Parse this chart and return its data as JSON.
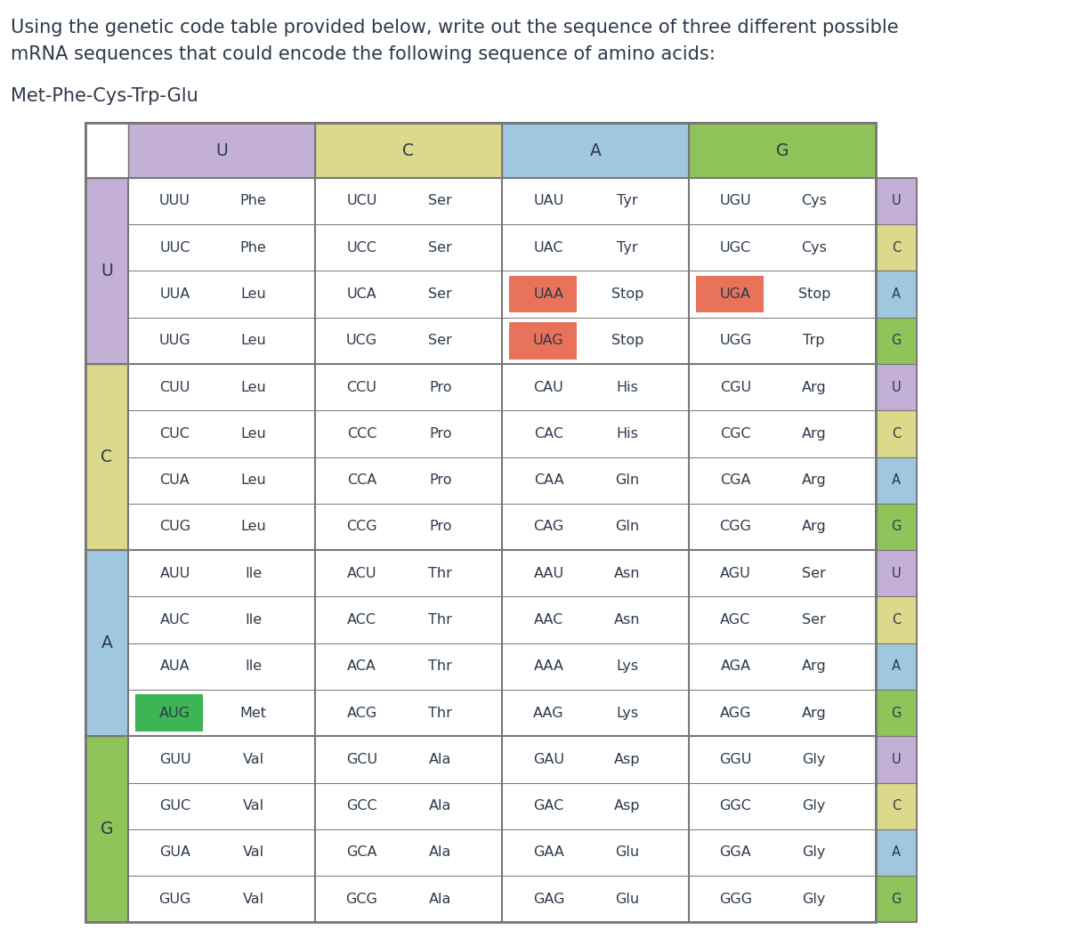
{
  "title_line1": "Using the genetic code table provided below, write out the sequence of three different possible",
  "title_line2": "mRNA sequences that could encode the following sequence of amino acids:",
  "subtitle": "Met-Phe-Cys-Trp-Glu",
  "title_fontsize": 15.0,
  "subtitle_fontsize": 15.0,
  "col_headers": [
    "U",
    "C",
    "A",
    "G"
  ],
  "col_header_colors": [
    "#c4afd6",
    "#dcd98a",
    "#9fc8e0",
    "#8fc45a"
  ],
  "row_headers": [
    "U",
    "C",
    "A",
    "G"
  ],
  "row_header_colors": [
    "#c4afd6",
    "#dcd98a",
    "#9fc8e0",
    "#8fc45a"
  ],
  "right_col_labels": [
    "U",
    "C",
    "A",
    "G"
  ],
  "right_col_colors": [
    "#c4afd6",
    "#dcd98a",
    "#9fc8e0",
    "#8fc45a"
  ],
  "table_data": [
    {
      "row": "U",
      "cells": [
        [
          [
            "UUU",
            "Phe"
          ],
          [
            "UUC",
            "Phe"
          ],
          [
            "UUA",
            "Leu"
          ],
          [
            "UUG",
            "Leu"
          ]
        ],
        [
          [
            "UCU",
            "Ser"
          ],
          [
            "UCC",
            "Ser"
          ],
          [
            "UCA",
            "Ser"
          ],
          [
            "UCG",
            "Ser"
          ]
        ],
        [
          [
            "UAU",
            "Tyr"
          ],
          [
            "UAC",
            "Tyr"
          ],
          [
            "UAA",
            "Stop"
          ],
          [
            "UAG",
            "Stop"
          ]
        ],
        [
          [
            "UGU",
            "Cys"
          ],
          [
            "UGC",
            "Cys"
          ],
          [
            "UGA",
            "Stop"
          ],
          [
            "UGG",
            "Trp"
          ]
        ]
      ]
    },
    {
      "row": "C",
      "cells": [
        [
          [
            "CUU",
            "Leu"
          ],
          [
            "CUC",
            "Leu"
          ],
          [
            "CUA",
            "Leu"
          ],
          [
            "CUG",
            "Leu"
          ]
        ],
        [
          [
            "CCU",
            "Pro"
          ],
          [
            "CCC",
            "Pro"
          ],
          [
            "CCA",
            "Pro"
          ],
          [
            "CCG",
            "Pro"
          ]
        ],
        [
          [
            "CAU",
            "His"
          ],
          [
            "CAC",
            "His"
          ],
          [
            "CAA",
            "Gln"
          ],
          [
            "CAG",
            "Gln"
          ]
        ],
        [
          [
            "CGU",
            "Arg"
          ],
          [
            "CGC",
            "Arg"
          ],
          [
            "CGA",
            "Arg"
          ],
          [
            "CGG",
            "Arg"
          ]
        ]
      ]
    },
    {
      "row": "A",
      "cells": [
        [
          [
            "AUU",
            "Ile"
          ],
          [
            "AUC",
            "Ile"
          ],
          [
            "AUA",
            "Ile"
          ],
          [
            "AUG",
            "Met"
          ]
        ],
        [
          [
            "ACU",
            "Thr"
          ],
          [
            "ACC",
            "Thr"
          ],
          [
            "ACA",
            "Thr"
          ],
          [
            "ACG",
            "Thr"
          ]
        ],
        [
          [
            "AAU",
            "Asn"
          ],
          [
            "AAC",
            "Asn"
          ],
          [
            "AAA",
            "Lys"
          ],
          [
            "AAG",
            "Lys"
          ]
        ],
        [
          [
            "AGU",
            "Ser"
          ],
          [
            "AGC",
            "Ser"
          ],
          [
            "AGA",
            "Arg"
          ],
          [
            "AGG",
            "Arg"
          ]
        ]
      ]
    },
    {
      "row": "G",
      "cells": [
        [
          [
            "GUU",
            "Val"
          ],
          [
            "GUC",
            "Val"
          ],
          [
            "GUA",
            "Val"
          ],
          [
            "GUG",
            "Val"
          ]
        ],
        [
          [
            "GCU",
            "Ala"
          ],
          [
            "GCC",
            "Ala"
          ],
          [
            "GCA",
            "Ala"
          ],
          [
            "GCG",
            "Ala"
          ]
        ],
        [
          [
            "GAU",
            "Asp"
          ],
          [
            "GAC",
            "Asp"
          ],
          [
            "GAA",
            "Glu"
          ],
          [
            "GAG",
            "Glu"
          ]
        ],
        [
          [
            "GGU",
            "Gly"
          ],
          [
            "GGC",
            "Gly"
          ],
          [
            "GGA",
            "Gly"
          ],
          [
            "GGG",
            "Gly"
          ]
        ]
      ]
    }
  ],
  "highlights": {
    "UAA": "#e8735a",
    "UAG": "#e8735a",
    "UGA": "#e8735a",
    "AUG": "#3db554"
  },
  "bg_color": "#ffffff",
  "text_color": "#2d3a4a",
  "grid_color": "#777777",
  "cell_text_fontsize": 11.5,
  "header_fontsize": 13.5
}
